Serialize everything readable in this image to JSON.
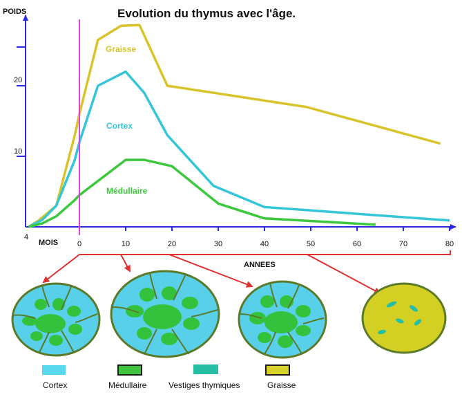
{
  "chart_data": {
    "type": "line",
    "title": "Evolution du thymus avec l'âge.",
    "ylabel": "POIDS",
    "xlabel_left": "MOIS",
    "xlabel": "ANNEES",
    "x_ticks": [
      "4",
      "0",
      "10",
      "20",
      "30",
      "40",
      "50",
      "60",
      "70",
      "80"
    ],
    "y_ticks": [
      "10",
      "20"
    ],
    "xlim": [
      -11,
      81
    ],
    "ylim": [
      0,
      30
    ],
    "birth_marker_x": 0,
    "series": [
      {
        "name": "Graisse",
        "color": "#d8c42a",
        "x": [
          -11,
          -9,
          -5,
          -1,
          0,
          4,
          9,
          13,
          19,
          49,
          78
        ],
        "y": [
          0,
          0.8,
          3,
          13,
          16,
          26.5,
          28.5,
          28.6,
          20,
          17,
          11.8
        ]
      },
      {
        "name": "Cortex",
        "color": "#34c6d8",
        "x": [
          -11,
          -8,
          -5,
          -1,
          0,
          4,
          10,
          14,
          19,
          29,
          40,
          80
        ],
        "y": [
          0,
          1,
          3,
          9.5,
          12,
          20,
          22,
          19,
          13,
          5.8,
          2.8,
          0.9
        ]
      },
      {
        "name": "Médullaire",
        "color": "#3cc83c",
        "x": [
          -11,
          -8,
          -5,
          -1,
          0,
          10,
          14,
          20,
          30,
          40,
          64
        ],
        "y": [
          0,
          0.5,
          1.5,
          3.8,
          4.5,
          9.5,
          9.5,
          8.6,
          3.3,
          1.2,
          0.3
        ]
      }
    ]
  },
  "legend": [
    {
      "label": "Cortex",
      "color": "#58d8ea"
    },
    {
      "label": "Médullaire",
      "color": "#3ec43e"
    },
    {
      "label": "Vestiges thymiques",
      "color": "#26bfa4"
    },
    {
      "label": "Graisse",
      "color": "#d8d22a"
    }
  ],
  "colors": {
    "arrow": "#e03030",
    "birth_marker": "#e040e0",
    "axis": "#2a2adf",
    "outline": "#5a7a2a",
    "cortex_fill": "#58d0ea",
    "medulla_fill": "#34c23c",
    "fat_fill": "#d4d023",
    "vestige_fill": "#26bfa4"
  }
}
